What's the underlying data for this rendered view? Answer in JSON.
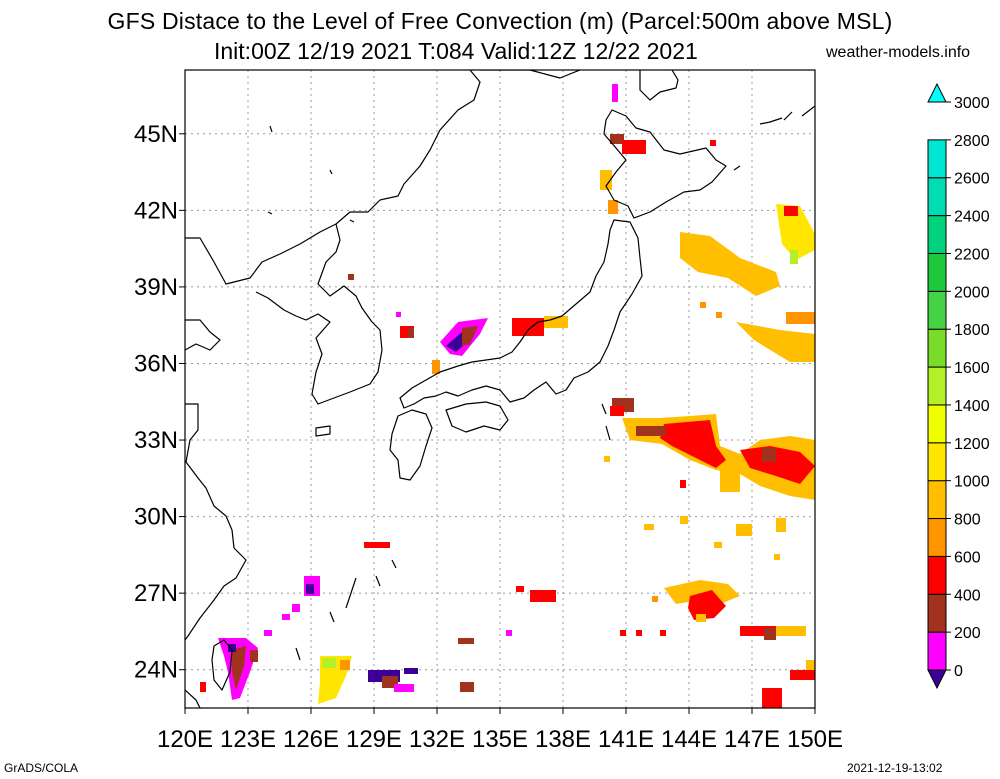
{
  "title": "GFS Distace to the Level of Free Convection (m) (Parcel:500m above MSL)",
  "subtitle": "Init:00Z 12/19 2021 T:084 Valid:12Z 12/22 2021",
  "site": "weather-models.info",
  "footer_left": "GrADS/COLA",
  "footer_right": "2021-12-19-13:02",
  "map": {
    "lon_range": [
      120,
      150
    ],
    "lat_range": [
      22.5,
      47.5
    ],
    "lon_ticks": [
      "120E",
      "123E",
      "126E",
      "129E",
      "132E",
      "135E",
      "138E",
      "141E",
      "144E",
      "147E",
      "150E"
    ],
    "lat_ticks": [
      "24N",
      "27N",
      "30N",
      "33N",
      "36N",
      "39N",
      "42N",
      "45N"
    ],
    "grid": true
  },
  "colorbar": {
    "labels": [
      "0",
      "200",
      "400",
      "600",
      "800",
      "1000",
      "1200",
      "1400",
      "1600",
      "1800",
      "2000",
      "2200",
      "2400",
      "2600",
      "2800",
      "3000"
    ],
    "colors": [
      "#3c0096",
      "#ff00ff",
      "#a0321e",
      "#ff0000",
      "#ff9600",
      "#ffbe00",
      "#ffe600",
      "#f0ff00",
      "#b4f028",
      "#78dc28",
      "#46d246",
      "#1ec83c",
      "#00d27d",
      "#00dcb4",
      "#00e6d2",
      "#00ffff"
    ]
  }
}
